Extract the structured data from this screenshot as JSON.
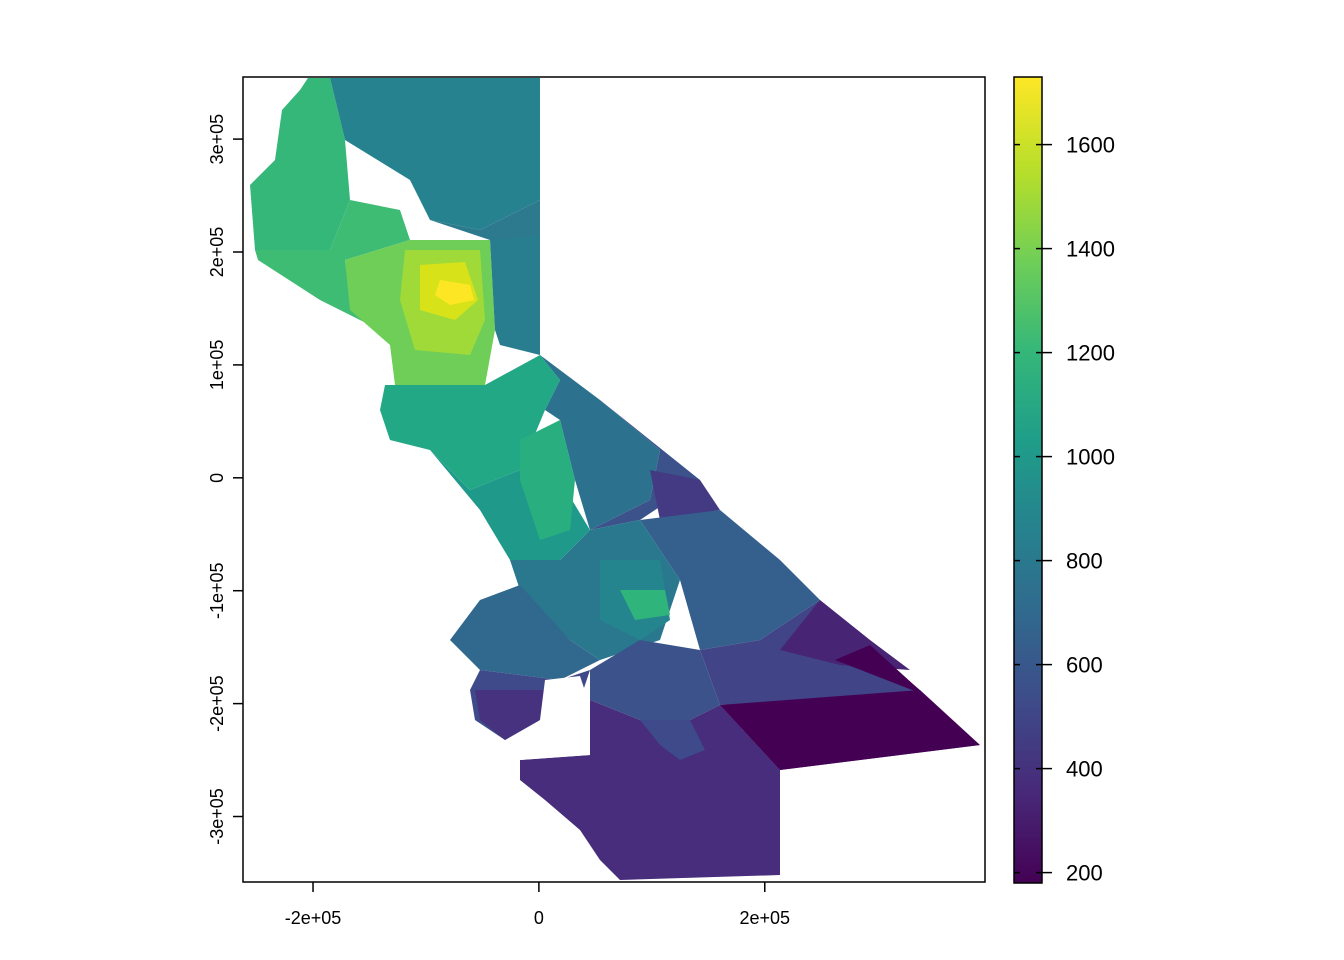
{
  "map": {
    "type": "raster-map",
    "x_ticks": [
      {
        "value": -200000,
        "label": "-2e+05"
      },
      {
        "value": 0,
        "label": "0"
      },
      {
        "value": 200000,
        "label": "2e+05"
      }
    ],
    "y_ticks": [
      {
        "value": -300000,
        "label": "-3e+05"
      },
      {
        "value": -200000,
        "label": "-2e+05"
      },
      {
        "value": -100000,
        "label": "-1e+05"
      },
      {
        "value": 0,
        "label": "0"
      },
      {
        "value": 100000,
        "label": "1e+05"
      },
      {
        "value": 200000,
        "label": "2e+05"
      },
      {
        "value": 300000,
        "label": "3e+05"
      }
    ],
    "xlim": [
      -262000,
      395000
    ],
    "ylim": [
      -358000,
      355000
    ],
    "colors": {
      "frame": "#000000",
      "background": "#ffffff"
    }
  },
  "legend": {
    "type": "colorbar",
    "range": [
      180,
      1730
    ],
    "ticks": [
      {
        "value": 200,
        "label": "200"
      },
      {
        "value": 400,
        "label": "400"
      },
      {
        "value": 600,
        "label": "600"
      },
      {
        "value": 800,
        "label": "800"
      },
      {
        "value": 1000,
        "label": "1000"
      },
      {
        "value": 1200,
        "label": "1200"
      },
      {
        "value": 1400,
        "label": "1400"
      },
      {
        "value": 1600,
        "label": "1600"
      }
    ],
    "palette": "viridis",
    "colors": [
      "#440154",
      "#482878",
      "#3e4a89",
      "#31688e",
      "#26828e",
      "#1f9e89",
      "#35b779",
      "#6ece58",
      "#b5de2b",
      "#fde725"
    ]
  }
}
